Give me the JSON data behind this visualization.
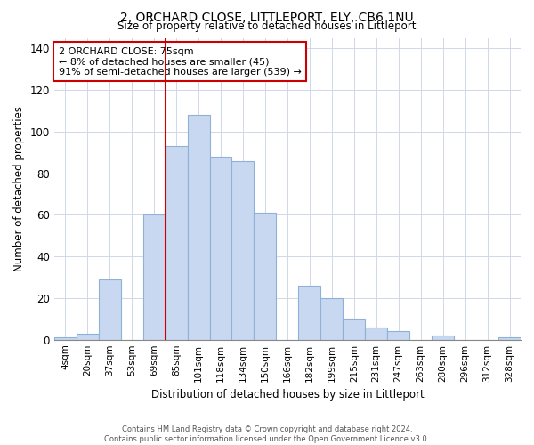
{
  "title": "2, ORCHARD CLOSE, LITTLEPORT, ELY, CB6 1NU",
  "subtitle": "Size of property relative to detached houses in Littleport",
  "xlabel": "Distribution of detached houses by size in Littleport",
  "ylabel": "Number of detached properties",
  "footer_line1": "Contains HM Land Registry data © Crown copyright and database right 2024.",
  "footer_line2": "Contains public sector information licensed under the Open Government Licence v3.0.",
  "bin_labels": [
    "4sqm",
    "20sqm",
    "37sqm",
    "53sqm",
    "69sqm",
    "85sqm",
    "101sqm",
    "118sqm",
    "134sqm",
    "150sqm",
    "166sqm",
    "182sqm",
    "199sqm",
    "215sqm",
    "231sqm",
    "247sqm",
    "263sqm",
    "280sqm",
    "296sqm",
    "312sqm",
    "328sqm"
  ],
  "bar_heights": [
    1,
    3,
    29,
    0,
    60,
    93,
    108,
    88,
    86,
    61,
    0,
    26,
    20,
    10,
    6,
    4,
    0,
    2,
    0,
    0,
    1
  ],
  "bar_color": "#c8d8f0",
  "bar_edge_color": "#8fb0d8",
  "vline_bar_index": 4,
  "vline_color": "#cc0000",
  "ylim": [
    0,
    145
  ],
  "annotation_title": "2 ORCHARD CLOSE: 75sqm",
  "annotation_line1": "← 8% of detached houses are smaller (45)",
  "annotation_line2": "91% of semi-detached houses are larger (539) →",
  "annotation_box_color": "#ffffff",
  "annotation_box_edge_color": "#cc0000",
  "grid_color": "#d0d8e8",
  "background_color": "#ffffff"
}
